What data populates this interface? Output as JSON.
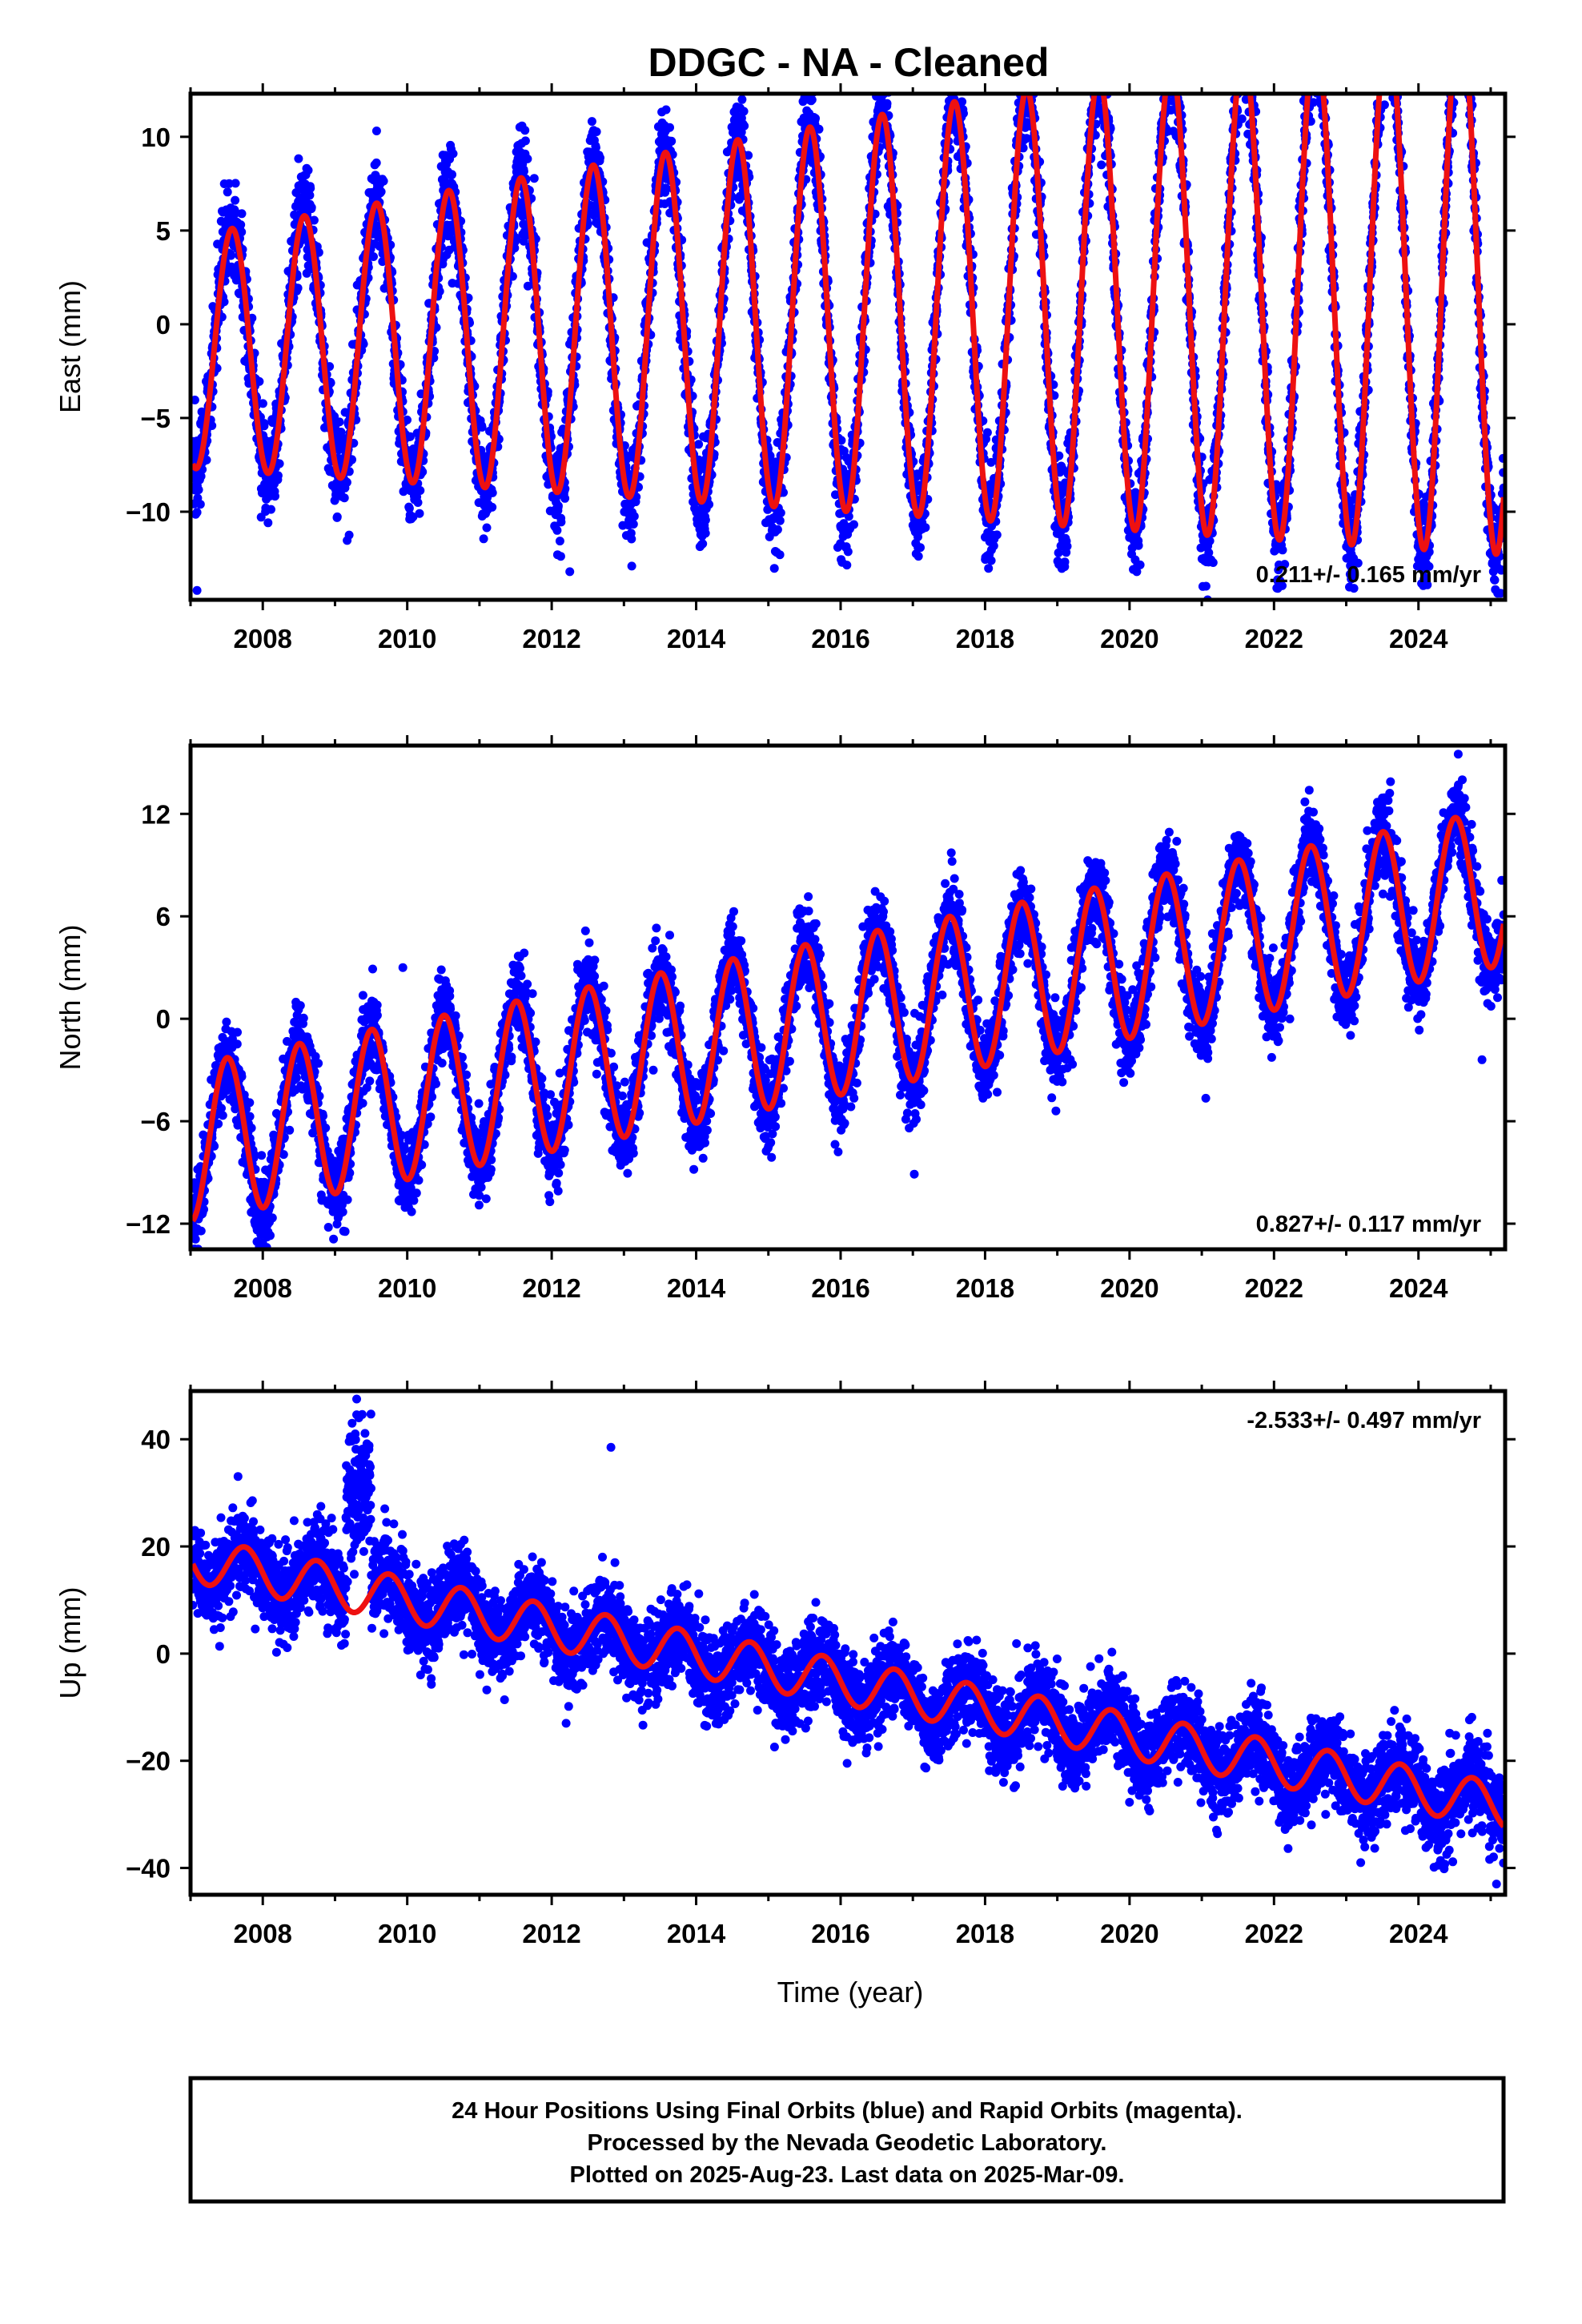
{
  "chart_data": {
    "type": "scatter",
    "title": "DDGC  - NA - Cleaned",
    "xlabel": "Time (year)",
    "x_range": [
      2007.0,
      2025.2
    ],
    "x_ticks": [
      2008,
      2010,
      2012,
      2014,
      2016,
      2018,
      2020,
      2022,
      2024
    ],
    "colors": {
      "observed": "#0000ff",
      "model": "#ee1111"
    },
    "panels": [
      {
        "id": "east",
        "ylabel": "East (mm)",
        "ylim": [
          -14.7,
          12.3
        ],
        "y_ticks": [
          -10,
          -5,
          0,
          5,
          10
        ],
        "rate_label": "0.211+/- 0.165 mm/yr",
        "rate_position": "bottom-right",
        "model": {
          "offset": -1.48,
          "rate": 0.211,
          "annual_amp": 6.2,
          "amp_growth": 0.075,
          "peak_month": 7.4
        },
        "noise": 1.3,
        "series": [
          {
            "name": "Final Orbits (blue)",
            "kind": "points",
            "points": [
              [
                2007.09,
                -14.2
              ],
              [
                2012.25,
                -13.2
              ],
              [
                2016.02,
                -12.7
              ],
              [
                2015.96,
                -11.9
              ],
              [
                2021.72,
                11.6
              ],
              [
                2017.52,
                11.0
              ],
              [
                2009.55,
                8.5
              ],
              [
                2010.62,
                7.5
              ]
            ]
          },
          {
            "name": "model fit",
            "kind": "line"
          }
        ]
      },
      {
        "id": "north",
        "ylabel": "North (mm)",
        "ylim": [
          -13.5,
          16.0
        ],
        "y_ticks": [
          -12,
          -6,
          0,
          6,
          12
        ],
        "rate_label": "0.827+/- 0.117 mm/yr",
        "rate_position": "bottom-right",
        "model": {
          "offset": -7.3,
          "rate": 0.827,
          "annual_amp": 4.6,
          "amp_growth": 0.0,
          "peak_month": 6.6
        },
        "noise": 1.2,
        "series": [
          {
            "name": "Final Orbits (blue)",
            "kind": "points",
            "points": [
              [
                2024.55,
                15.5
              ],
              [
                2009.94,
                3.0
              ],
              [
                2017.02,
                -9.1
              ],
              [
                2024.88,
                -2.4
              ],
              [
                2008.98,
                -12.9
              ]
            ]
          },
          {
            "name": "model fit",
            "kind": "line"
          }
        ]
      },
      {
        "id": "up",
        "ylabel": "Up (mm)",
        "ylim": [
          -45,
          49
        ],
        "y_ticks": [
          -40,
          -20,
          0,
          20,
          40
        ],
        "rate_label": "-2.533+/- 0.497 mm/yr",
        "rate_position": "top-right",
        "model": {
          "offset": 17.6,
          "rate": -2.533,
          "annual_amp": 4.2,
          "amp_growth": 0.0,
          "peak_month": 9.5
        },
        "noise": 4.0,
        "series": [
          {
            "name": "Final Orbits (blue)",
            "kind": "points",
            "points": [
              [
                2009.3,
                47.5
              ],
              [
                2009.33,
                44.0
              ],
              [
                2009.28,
                41.0
              ],
              [
                2009.36,
                38.0
              ],
              [
                2012.82,
                38.5
              ],
              [
                2012.2,
                -13.0
              ],
              [
                2025.08,
                -43.0
              ],
              [
                2023.2,
                -39.0
              ]
            ]
          },
          {
            "name": "model fit",
            "kind": "line"
          }
        ]
      }
    ]
  },
  "footer": {
    "line1": "24 Hour Positions Using Final Orbits (blue) and Rapid Orbits (magenta).",
    "line2": "Processed by the Nevada Geodetic Laboratory.",
    "line3": "Plotted on 2025-Aug-23. Last data on 2025-Mar-09."
  }
}
